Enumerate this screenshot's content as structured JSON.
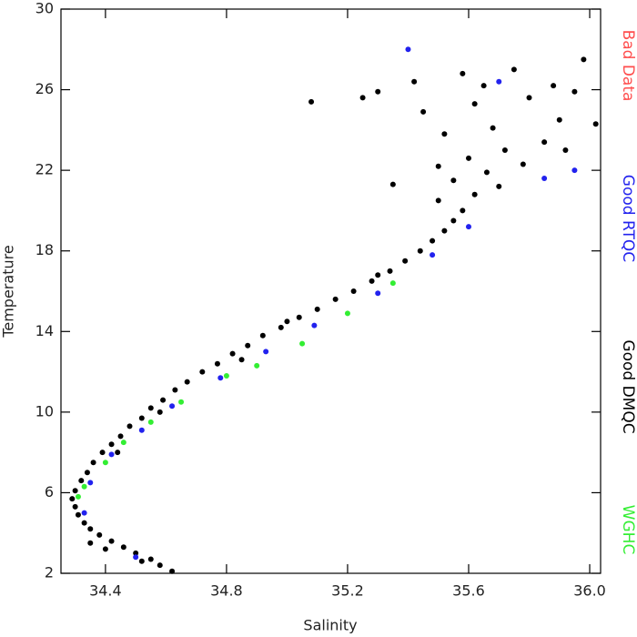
{
  "chart_data": {
    "type": "scatter",
    "x_label": "Salinity",
    "y_label": "Temperature",
    "xlim": [
      34.253,
      36.036
    ],
    "ylim": [
      2,
      30
    ],
    "xticks": [
      34.4,
      34.8,
      35.2,
      35.6,
      {
        "value": 36,
        "label": "36.0"
      }
    ],
    "yticks": [
      2,
      6,
      10,
      14,
      18,
      22,
      26,
      30
    ],
    "series": [
      {
        "name": "Bad Data",
        "color": "#ff4d4d",
        "x": [],
        "y": []
      },
      {
        "name": "Good RTQC",
        "color": "#2222ee",
        "x": [
          34.5,
          34.33,
          34.35,
          34.42,
          34.52,
          34.62,
          34.78,
          34.93,
          35.09,
          35.3,
          35.48,
          35.6,
          35.85,
          35.4,
          35.7,
          35.95
        ],
        "y": [
          2.8,
          5.0,
          6.5,
          7.9,
          9.1,
          10.3,
          11.7,
          13.0,
          14.3,
          15.9,
          17.8,
          19.2,
          21.6,
          28.0,
          26.4,
          22.0
        ]
      },
      {
        "name": "Good DMQC",
        "color": "#000000",
        "x": [
          34.62,
          34.58,
          34.55,
          34.5,
          34.46,
          34.42,
          34.38,
          34.35,
          34.33,
          34.31,
          34.3,
          34.29,
          34.3,
          34.32,
          34.34,
          34.36,
          34.39,
          34.42,
          34.45,
          34.48,
          34.52,
          34.55,
          34.59,
          34.63,
          34.67,
          34.72,
          34.77,
          34.82,
          34.87,
          34.92,
          34.98,
          35.04,
          35.1,
          35.16,
          35.22,
          35.28,
          35.34,
          35.39,
          35.44,
          35.48,
          35.52,
          35.55,
          35.58,
          35.5,
          35.62,
          35.7,
          35.55,
          35.66,
          35.78,
          35.6,
          35.72,
          35.85,
          35.52,
          35.68,
          35.9,
          35.45,
          35.62,
          35.8,
          35.95,
          35.3,
          35.42,
          35.58,
          35.75,
          35.98,
          36.02,
          35.25,
          35.08,
          35.35,
          35.88,
          35.5,
          35.92,
          35.65,
          34.44,
          34.58,
          34.85,
          35.0,
          35.3,
          34.35,
          34.4,
          34.52
        ],
        "y": [
          2.1,
          2.4,
          2.7,
          3.0,
          3.3,
          3.6,
          3.9,
          4.2,
          4.5,
          4.9,
          5.3,
          5.7,
          6.1,
          6.6,
          7.0,
          7.5,
          8.0,
          8.4,
          8.8,
          9.3,
          9.7,
          10.2,
          10.6,
          11.1,
          11.5,
          12.0,
          12.4,
          12.9,
          13.3,
          13.8,
          14.2,
          14.7,
          15.1,
          15.6,
          16.0,
          16.5,
          17.0,
          17.5,
          18.0,
          18.5,
          19.0,
          19.5,
          20.0,
          20.5,
          20.8,
          21.2,
          21.5,
          21.9,
          22.3,
          22.6,
          23.0,
          23.4,
          23.8,
          24.1,
          24.5,
          24.9,
          25.3,
          25.6,
          25.9,
          25.9,
          26.4,
          26.8,
          27.0,
          27.5,
          24.3,
          25.6,
          25.4,
          21.3,
          26.2,
          22.2,
          23.0,
          26.2,
          8.0,
          10.0,
          12.6,
          14.5,
          16.8,
          3.5,
          3.2,
          2.6
        ]
      },
      {
        "name": "WGHC",
        "color": "#33ee33",
        "x": [
          34.33,
          34.4,
          34.46,
          34.55,
          34.65,
          34.8,
          34.9,
          35.05,
          35.2,
          35.35,
          34.31
        ],
        "y": [
          6.3,
          7.5,
          8.5,
          9.5,
          10.5,
          11.8,
          12.3,
          13.4,
          14.9,
          16.4,
          5.8
        ]
      }
    ]
  }
}
